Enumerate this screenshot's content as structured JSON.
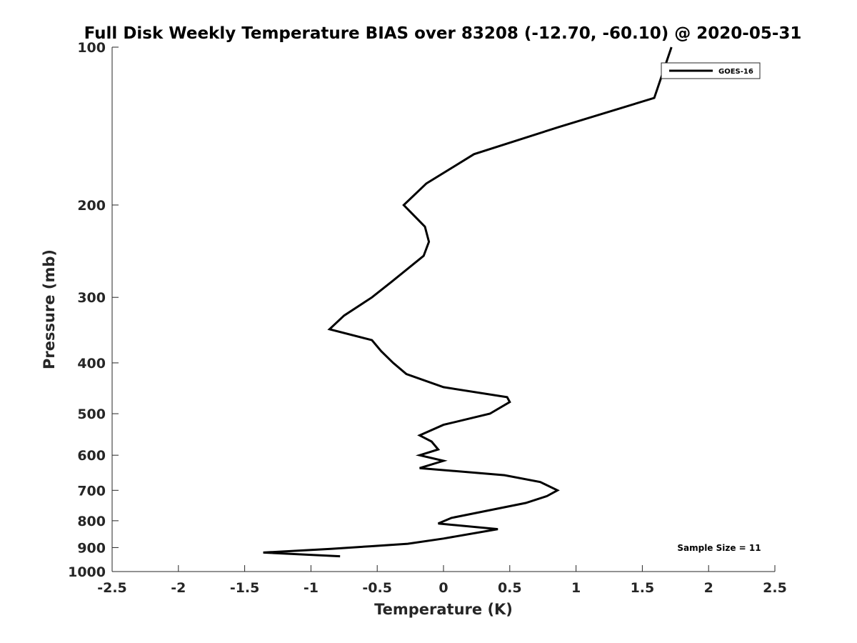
{
  "chart_data": {
    "type": "line",
    "title": "Full Disk Weekly Temperature BIAS over 83208 (-12.70, -60.10) @ 2020-05-31",
    "xlabel": "Temperature (K)",
    "ylabel": "Pressure (mb)",
    "xlim": [
      -2.5,
      2.5
    ],
    "ylim": [
      100,
      1000
    ],
    "y_scale": "log",
    "y_reversed": true,
    "x_ticks": [
      -2.5,
      -2,
      -1.5,
      -1,
      -0.5,
      0,
      0.5,
      1,
      1.5,
      2,
      2.5
    ],
    "x_tick_labels": [
      "-2.5",
      "-2",
      "-1.5",
      "-1",
      "-0.5",
      "0",
      "0.5",
      "1",
      "1.5",
      "2",
      "2.5"
    ],
    "y_ticks": [
      100,
      200,
      300,
      400,
      500,
      600,
      700,
      800,
      900,
      1000
    ],
    "y_tick_labels": [
      "100",
      "200",
      "300",
      "400",
      "500",
      "600",
      "700",
      "800",
      "900",
      "1000"
    ],
    "grid": false,
    "legend_position": "top-right",
    "annotation": "Sample Size = 11",
    "series": [
      {
        "name": "GOES-16",
        "color": "#000000",
        "points": [
          [
            1.72,
            100
          ],
          [
            1.59,
            125
          ],
          [
            0.87,
            142
          ],
          [
            0.23,
            160
          ],
          [
            -0.13,
            182
          ],
          [
            -0.3,
            200
          ],
          [
            -0.14,
            220
          ],
          [
            -0.11,
            235
          ],
          [
            -0.15,
            250
          ],
          [
            -0.39,
            280
          ],
          [
            -0.54,
            300
          ],
          [
            -0.75,
            325
          ],
          [
            -0.86,
            345
          ],
          [
            -0.54,
            362
          ],
          [
            -0.47,
            380
          ],
          [
            -0.38,
            400
          ],
          [
            -0.28,
            420
          ],
          [
            0.0,
            445
          ],
          [
            0.48,
            465
          ],
          [
            0.5,
            475
          ],
          [
            0.35,
            500
          ],
          [
            0.0,
            525
          ],
          [
            -0.18,
            550
          ],
          [
            -0.09,
            565
          ],
          [
            -0.04,
            585
          ],
          [
            -0.18,
            600
          ],
          [
            0.0,
            615
          ],
          [
            -0.18,
            635
          ],
          [
            0.46,
            655
          ],
          [
            0.73,
            675
          ],
          [
            0.86,
            700
          ],
          [
            0.78,
            718
          ],
          [
            0.62,
            740
          ],
          [
            0.06,
            790
          ],
          [
            -0.04,
            810
          ],
          [
            0.41,
            830
          ],
          [
            0.0,
            865
          ],
          [
            -0.27,
            885
          ],
          [
            -0.55,
            895
          ],
          [
            -0.85,
            905
          ],
          [
            -1.36,
            920
          ],
          [
            -0.78,
            935
          ]
        ]
      }
    ]
  }
}
